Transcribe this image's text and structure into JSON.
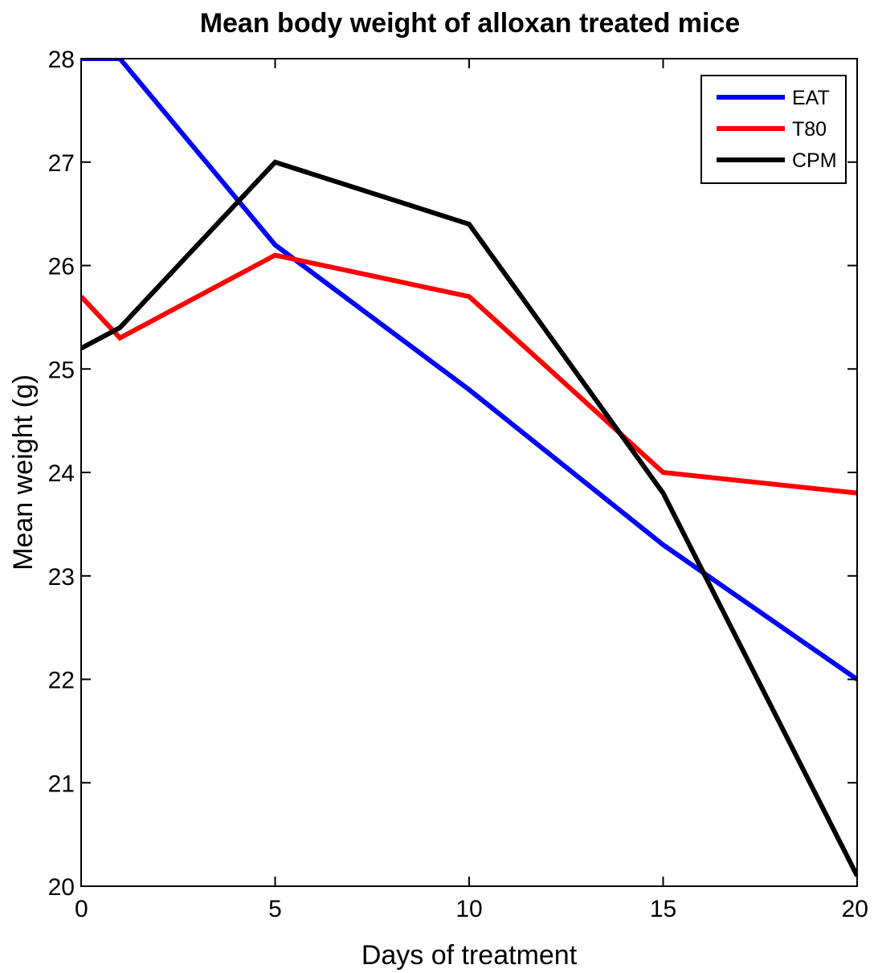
{
  "chart_data": {
    "type": "line",
    "title": "Mean body weight of alloxan treated mice",
    "xlabel": "Days of treatment",
    "ylabel": "Mean weight (g)",
    "xlim": [
      0,
      20
    ],
    "ylim": [
      20,
      28
    ],
    "xticks": [
      0,
      5,
      10,
      15,
      20
    ],
    "yticks": [
      20,
      21,
      22,
      23,
      24,
      25,
      26,
      27,
      28
    ],
    "xtick_labels": [
      "0",
      "5",
      "10",
      "15",
      "20"
    ],
    "ytick_labels": [
      "20",
      "21",
      "22",
      "23",
      "24",
      "25",
      "26",
      "27",
      "28"
    ],
    "grid": false,
    "legend_position": "top-right",
    "series": [
      {
        "name": "EAT",
        "color": "#0000ff",
        "points": [
          [
            0,
            28.0
          ],
          [
            1,
            28.0
          ],
          [
            5,
            26.2
          ],
          [
            10,
            24.8
          ],
          [
            15,
            23.3
          ],
          [
            20,
            22.0
          ]
        ]
      },
      {
        "name": "T80",
        "color": "#ff0000",
        "points": [
          [
            0,
            25.7
          ],
          [
            1,
            25.3
          ],
          [
            5,
            26.1
          ],
          [
            10,
            25.7
          ],
          [
            15,
            24.0
          ],
          [
            20,
            23.8
          ]
        ]
      },
      {
        "name": "CPM",
        "color": "#000000",
        "points": [
          [
            0,
            25.2
          ],
          [
            1,
            25.4
          ],
          [
            5,
            27.0
          ],
          [
            10,
            26.4
          ],
          [
            15,
            23.8
          ],
          [
            20,
            20.1
          ]
        ]
      }
    ]
  }
}
